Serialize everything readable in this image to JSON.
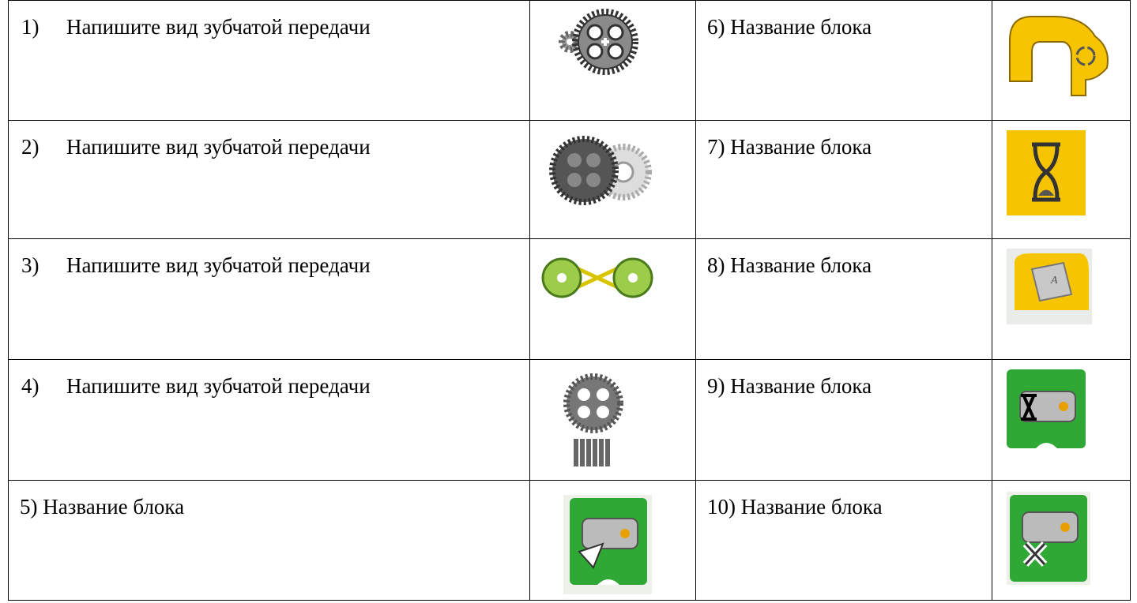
{
  "table": {
    "rows": [
      {
        "left": {
          "marker": "1)",
          "text": "Напишите вид зубчатой передачи"
        },
        "right": "6) Название блока"
      },
      {
        "left": {
          "marker": "2)",
          "text": "Напишите вид зубчатой передачи"
        },
        "right": "7) Название блока"
      },
      {
        "left": {
          "marker": "3)",
          "text": "Напишите вид зубчатой передачи"
        },
        "right": "8) Название блока"
      },
      {
        "left": {
          "marker": "4)",
          "text": "Напишите вид зубчатой передачи"
        },
        "right": "9) Название блока"
      },
      {
        "left": {
          "text": "5) Название блока"
        },
        "right": "10) Название блока"
      }
    ]
  }
}
